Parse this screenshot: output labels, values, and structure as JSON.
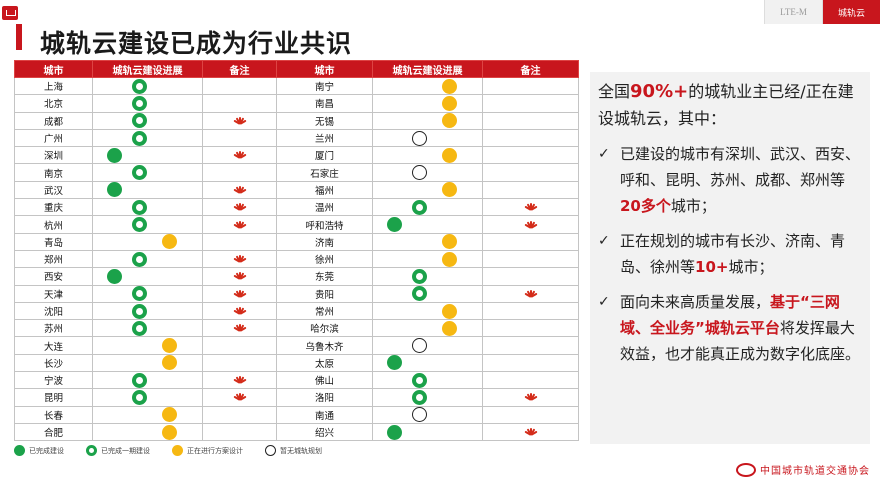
{
  "header": {
    "tabs": [
      {
        "label": "LTE-M",
        "active": false
      },
      {
        "label": "城轨云",
        "active": true
      }
    ]
  },
  "title": "城轨云建设已成为行业共识",
  "table": {
    "headers": [
      "城市",
      "城轨云建设进展",
      "备注",
      "城市",
      "城轨云建设进展",
      "备注"
    ],
    "status_positions": {
      "built": 1,
      "phase1": 2,
      "planning": 3,
      "none": 2
    },
    "rows": [
      {
        "left": {
          "city": "上海",
          "status": "phase1",
          "note": false
        },
        "right": {
          "city": "南宁",
          "status": "planning",
          "note": false
        }
      },
      {
        "left": {
          "city": "北京",
          "status": "phase1",
          "note": false
        },
        "right": {
          "city": "南昌",
          "status": "planning",
          "note": false
        }
      },
      {
        "left": {
          "city": "成都",
          "status": "phase1",
          "note": true
        },
        "right": {
          "city": "无锡",
          "status": "planning",
          "note": false
        }
      },
      {
        "left": {
          "city": "广州",
          "status": "phase1",
          "note": false
        },
        "right": {
          "city": "兰州",
          "status": "none",
          "note": false
        }
      },
      {
        "left": {
          "city": "深圳",
          "status": "built",
          "note": true
        },
        "right": {
          "city": "厦门",
          "status": "planning",
          "note": false
        }
      },
      {
        "left": {
          "city": "南京",
          "status": "phase1",
          "note": false
        },
        "right": {
          "city": "石家庄",
          "status": "none",
          "note": false
        }
      },
      {
        "left": {
          "city": "武汉",
          "status": "built",
          "note": true
        },
        "right": {
          "city": "福州",
          "status": "planning",
          "note": false
        }
      },
      {
        "left": {
          "city": "重庆",
          "status": "phase1",
          "note": true
        },
        "right": {
          "city": "温州",
          "status": "phase1",
          "note": true
        }
      },
      {
        "left": {
          "city": "杭州",
          "status": "phase1",
          "note": true
        },
        "right": {
          "city": "呼和浩特",
          "status": "built",
          "note": true
        }
      },
      {
        "left": {
          "city": "青岛",
          "status": "planning",
          "note": false
        },
        "right": {
          "city": "济南",
          "status": "planning",
          "note": false
        }
      },
      {
        "left": {
          "city": "郑州",
          "status": "phase1",
          "note": true
        },
        "right": {
          "city": "徐州",
          "status": "planning",
          "note": false
        }
      },
      {
        "left": {
          "city": "西安",
          "status": "built",
          "note": true
        },
        "right": {
          "city": "东莞",
          "status": "phase1",
          "note": false
        }
      },
      {
        "left": {
          "city": "天津",
          "status": "phase1",
          "note": true
        },
        "right": {
          "city": "贵阳",
          "status": "phase1",
          "note": true
        }
      },
      {
        "left": {
          "city": "沈阳",
          "status": "phase1",
          "note": true
        },
        "right": {
          "city": "常州",
          "status": "planning",
          "note": false
        }
      },
      {
        "left": {
          "city": "苏州",
          "status": "phase1",
          "note": true
        },
        "right": {
          "city": "哈尔滨",
          "status": "planning",
          "note": false
        }
      },
      {
        "left": {
          "city": "大连",
          "status": "planning",
          "note": false
        },
        "right": {
          "city": "乌鲁木齐",
          "status": "none",
          "note": false
        }
      },
      {
        "left": {
          "city": "长沙",
          "status": "planning",
          "note": false
        },
        "right": {
          "city": "太原",
          "status": "built",
          "note": false
        }
      },
      {
        "left": {
          "city": "宁波",
          "status": "phase1",
          "note": true
        },
        "right": {
          "city": "佛山",
          "status": "phase1",
          "note": false
        }
      },
      {
        "left": {
          "city": "昆明",
          "status": "phase1",
          "note": true
        },
        "right": {
          "city": "洛阳",
          "status": "phase1",
          "note": true
        }
      },
      {
        "left": {
          "city": "长春",
          "status": "planning",
          "note": false
        },
        "right": {
          "city": "南通",
          "status": "none",
          "note": false
        }
      },
      {
        "left": {
          "city": "合肥",
          "status": "planning",
          "note": false
        },
        "right": {
          "city": "绍兴",
          "status": "built",
          "note": true
        }
      }
    ]
  },
  "legend": [
    {
      "status": "built",
      "label": "已完成建设"
    },
    {
      "status": "phase1",
      "label": "已完成一期建设"
    },
    {
      "status": "planning",
      "label": "正在进行方案设计"
    },
    {
      "status": "none",
      "label": "暂无城轨规划"
    }
  ],
  "panel": {
    "intro": {
      "pre": "全国",
      "highlight": "90%+",
      "post": "的城轨业主已经/正在建设城轨云，其中："
    },
    "bullets": [
      {
        "pre": "已建设的城市有深圳、武汉、西安、呼和、昆明、苏州、成都、郑州等",
        "highlight": "20多个",
        "post": "城市；"
      },
      {
        "pre": "正在规划的城市有长沙、济南、青岛、徐州等",
        "highlight": "10+",
        "post": "城市；"
      },
      {
        "pre": "面向未来高质量发展，",
        "highlight": "基于“三网域、全业务”城轨云平台",
        "post": "将发挥最大效益，也才能真正成为数字化底座。"
      }
    ]
  },
  "footer": {
    "org_name": "中国城市轨道交通协会"
  },
  "colors": {
    "accent": "#c8161d",
    "built": "#1ba24a",
    "planning": "#f6b812",
    "panel_bg": "#f2f2f2"
  }
}
